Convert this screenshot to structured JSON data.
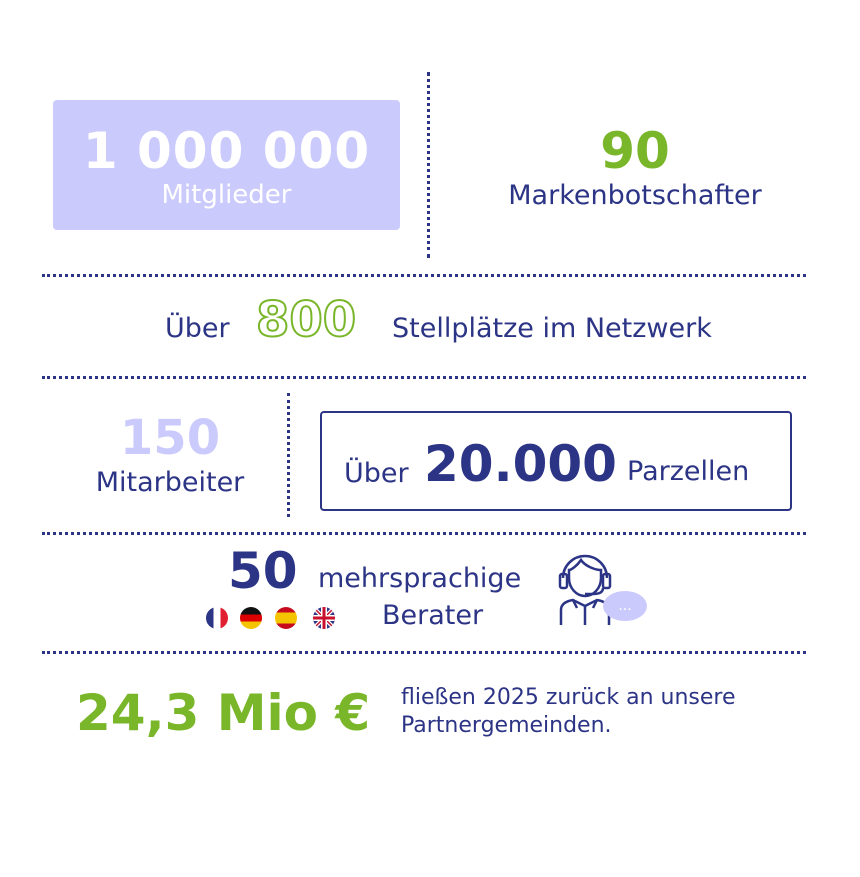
{
  "colors": {
    "navy": "#2c3486",
    "green": "#7ab629",
    "lavender": "#cbcafc"
  },
  "members": {
    "value": "1 000 000",
    "label": "Mitglieder"
  },
  "ambassadors": {
    "value": "90",
    "label": "Markenbotschafter"
  },
  "pitches": {
    "prefix": "Über",
    "value": "800",
    "label": "Stellplätze im Netzwerk"
  },
  "staff": {
    "value": "150",
    "label": "Mitarbeiter"
  },
  "plots": {
    "prefix": "Über",
    "value": "20.000",
    "label": "Parzellen"
  },
  "advisors": {
    "value": "50",
    "label_line1": "mehrsprachige",
    "label_line2": "Berater",
    "flags": [
      "france",
      "germany",
      "spain",
      "uk"
    ],
    "icon": "support-agent-icon",
    "bubble": "..."
  },
  "funds": {
    "value": "24,3 Mio €",
    "text_line1": "fließen 2025 zurück an unsere",
    "text_line2": "Partnergemeinden."
  }
}
